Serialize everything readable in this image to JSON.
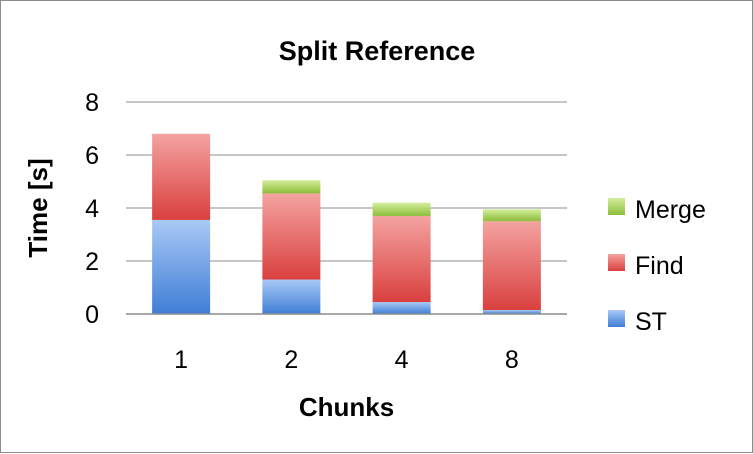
{
  "chart_data": {
    "type": "bar",
    "stacked": true,
    "title": "Split Reference",
    "xlabel": "Chunks",
    "ylabel": "Time [s]",
    "categories": [
      "1",
      "2",
      "4",
      "8"
    ],
    "ylim": [
      0,
      8
    ],
    "yticks": [
      0,
      2,
      4,
      6,
      8
    ],
    "grid": true,
    "legend_position": "right",
    "series": [
      {
        "name": "ST",
        "values": [
          3.55,
          1.3,
          0.45,
          0.15
        ],
        "color": "#4a86d8"
      },
      {
        "name": "Find",
        "values": [
          3.25,
          3.25,
          3.25,
          3.35
        ],
        "color": "#e25a58"
      },
      {
        "name": "Merge",
        "values": [
          0.0,
          0.5,
          0.5,
          0.45
        ],
        "color": "#97c443"
      }
    ]
  }
}
